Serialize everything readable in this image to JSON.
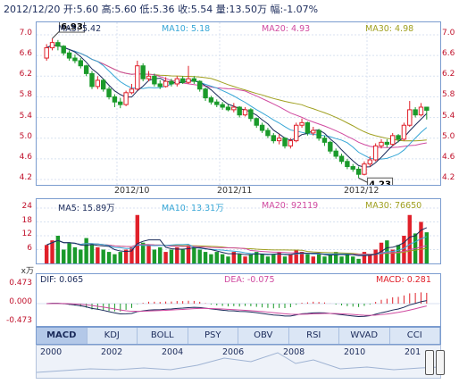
{
  "header": {
    "date": "2012/12/20",
    "open_label": "开:",
    "open": "5.60",
    "high_label": "高:",
    "high": "5.60",
    "low_label": "低:",
    "low": "5.36",
    "close_label": "收:",
    "close": "5.54",
    "volume_label": "量:",
    "volume": "13.50万",
    "change_label": "幅:",
    "change": "-1.07%"
  },
  "price_panel": {
    "ma5": "MA5: 5.42",
    "ma10": "MA10: 5.18",
    "ma20": "MA20: 4.93",
    "ma30": "MA30: 4.98",
    "y_ticks": [
      "7.0",
      "6.6",
      "6.2",
      "5.8",
      "5.4",
      "5.0",
      "4.6",
      "4.2"
    ],
    "x_ticks": [
      "2012/10",
      "2012/11",
      "2012/12"
    ],
    "high_marker": "6.93",
    "low_marker": "4.23"
  },
  "volume_panel": {
    "ma5": "MA5: 15.89万",
    "ma10": "MA10: 13.31万",
    "ma20": "MA20: 92119",
    "ma30": "MA30: 76650",
    "y_ticks": [
      "24",
      "18",
      "12",
      "6"
    ],
    "unit": "x万"
  },
  "macd_panel": {
    "dif": "DIF: 0.065",
    "dea": "DEA: -0.075",
    "macd": "MACD: 0.281",
    "y_ticks": [
      "0.473",
      "0.000",
      "-0.473"
    ]
  },
  "tabs": [
    "MACD",
    "KDJ",
    "BOLL",
    "PSY",
    "OBV",
    "RSI",
    "WVAD",
    "CCI"
  ],
  "active_tab": "MACD",
  "timeline": {
    "years": [
      "2000",
      "2002",
      "2004",
      "2006",
      "2008",
      "2010",
      "201"
    ]
  },
  "colors": {
    "up": "#e0202a",
    "down": "#1a9a2a",
    "ma5": "#1a2a5a",
    "ma10": "#36a6d6",
    "ma20": "#d04aa0",
    "ma30": "#a0a020",
    "border": "#7b9ccf"
  },
  "chart_data": {
    "type": "candlestick",
    "y_range": [
      4.2,
      7.0
    ],
    "candles": [
      {
        "o": 6.55,
        "c": 6.75,
        "h": 6.82,
        "l": 6.5
      },
      {
        "o": 6.75,
        "c": 6.85,
        "h": 6.93,
        "l": 6.7
      },
      {
        "o": 6.85,
        "c": 6.78,
        "h": 6.9,
        "l": 6.7
      },
      {
        "o": 6.78,
        "c": 6.65,
        "h": 6.8,
        "l": 6.6
      },
      {
        "o": 6.65,
        "c": 6.55,
        "h": 6.7,
        "l": 6.5
      },
      {
        "o": 6.55,
        "c": 6.5,
        "h": 6.62,
        "l": 6.45
      },
      {
        "o": 6.5,
        "c": 6.4,
        "h": 6.55,
        "l": 6.35
      },
      {
        "o": 6.4,
        "c": 6.25,
        "h": 6.42,
        "l": 6.2
      },
      {
        "o": 6.25,
        "c": 6.0,
        "h": 6.3,
        "l": 5.95
      },
      {
        "o": 6.0,
        "c": 6.12,
        "h": 6.2,
        "l": 5.95
      },
      {
        "o": 6.12,
        "c": 5.95,
        "h": 6.15,
        "l": 5.9
      },
      {
        "o": 5.95,
        "c": 5.8,
        "h": 6.0,
        "l": 5.75
      },
      {
        "o": 5.8,
        "c": 5.7,
        "h": 5.85,
        "l": 5.6
      },
      {
        "o": 5.7,
        "c": 5.65,
        "h": 5.78,
        "l": 5.58
      },
      {
        "o": 5.65,
        "c": 5.88,
        "h": 5.92,
        "l": 5.62
      },
      {
        "o": 5.88,
        "c": 5.95,
        "h": 6.05,
        "l": 5.85
      },
      {
        "o": 5.95,
        "c": 6.4,
        "h": 6.5,
        "l": 5.92
      },
      {
        "o": 6.4,
        "c": 6.15,
        "h": 6.45,
        "l": 6.1
      },
      {
        "o": 6.15,
        "c": 6.2,
        "h": 6.3,
        "l": 6.1
      },
      {
        "o": 6.2,
        "c": 6.05,
        "h": 6.25,
        "l": 6.0
      },
      {
        "o": 6.05,
        "c": 6.0,
        "h": 6.12,
        "l": 5.95
      },
      {
        "o": 6.0,
        "c": 6.1,
        "h": 6.18,
        "l": 5.98
      },
      {
        "o": 6.1,
        "c": 6.05,
        "h": 6.15,
        "l": 6.0
      },
      {
        "o": 6.05,
        "c": 6.15,
        "h": 6.2,
        "l": 6.0
      },
      {
        "o": 6.15,
        "c": 6.08,
        "h": 6.2,
        "l": 6.05
      },
      {
        "o": 6.08,
        "c": 6.15,
        "h": 6.4,
        "l": 6.05
      },
      {
        "o": 6.15,
        "c": 6.1,
        "h": 6.2,
        "l": 6.05
      },
      {
        "o": 6.1,
        "c": 5.95,
        "h": 6.12,
        "l": 5.9
      },
      {
        "o": 5.95,
        "c": 5.78,
        "h": 5.98,
        "l": 5.72
      },
      {
        "o": 5.78,
        "c": 5.7,
        "h": 5.82,
        "l": 5.65
      },
      {
        "o": 5.7,
        "c": 5.65,
        "h": 5.75,
        "l": 5.6
      },
      {
        "o": 5.65,
        "c": 5.6,
        "h": 5.7,
        "l": 5.55
      },
      {
        "o": 5.6,
        "c": 5.55,
        "h": 5.65,
        "l": 5.52
      },
      {
        "o": 5.55,
        "c": 5.6,
        "h": 5.68,
        "l": 5.5
      },
      {
        "o": 5.6,
        "c": 5.45,
        "h": 5.62,
        "l": 5.4
      },
      {
        "o": 5.45,
        "c": 5.55,
        "h": 5.6,
        "l": 5.42
      },
      {
        "o": 5.55,
        "c": 5.38,
        "h": 5.58,
        "l": 5.32
      },
      {
        "o": 5.38,
        "c": 5.25,
        "h": 5.4,
        "l": 5.2
      },
      {
        "o": 5.25,
        "c": 5.15,
        "h": 5.3,
        "l": 5.1
      },
      {
        "o": 5.15,
        "c": 5.05,
        "h": 5.2,
        "l": 5.0
      },
      {
        "o": 5.05,
        "c": 4.95,
        "h": 5.1,
        "l": 4.9
      },
      {
        "o": 4.95,
        "c": 5.0,
        "h": 5.08,
        "l": 4.88
      },
      {
        "o": 5.0,
        "c": 4.85,
        "h": 5.02,
        "l": 4.8
      },
      {
        "o": 4.85,
        "c": 4.95,
        "h": 5.0,
        "l": 4.8
      },
      {
        "o": 4.95,
        "c": 5.25,
        "h": 5.3,
        "l": 4.92
      },
      {
        "o": 5.25,
        "c": 5.3,
        "h": 5.38,
        "l": 5.2
      },
      {
        "o": 5.3,
        "c": 5.1,
        "h": 5.32,
        "l": 5.05
      },
      {
        "o": 5.1,
        "c": 5.15,
        "h": 5.22,
        "l": 5.05
      },
      {
        "o": 5.15,
        "c": 5.0,
        "h": 5.18,
        "l": 4.95
      },
      {
        "o": 5.0,
        "c": 4.92,
        "h": 5.05,
        "l": 4.85
      },
      {
        "o": 4.92,
        "c": 4.75,
        "h": 4.95,
        "l": 4.7
      },
      {
        "o": 4.75,
        "c": 4.65,
        "h": 4.8,
        "l": 4.6
      },
      {
        "o": 4.65,
        "c": 4.55,
        "h": 4.7,
        "l": 4.5
      },
      {
        "o": 4.55,
        "c": 4.45,
        "h": 4.6,
        "l": 4.4
      },
      {
        "o": 4.45,
        "c": 4.4,
        "h": 4.5,
        "l": 4.35
      },
      {
        "o": 4.4,
        "c": 4.3,
        "h": 4.45,
        "l": 4.23
      },
      {
        "o": 4.3,
        "c": 4.5,
        "h": 4.55,
        "l": 4.28
      },
      {
        "o": 4.5,
        "c": 4.58,
        "h": 4.65,
        "l": 4.45
      },
      {
        "o": 4.58,
        "c": 4.85,
        "h": 4.9,
        "l": 4.55
      },
      {
        "o": 4.85,
        "c": 4.92,
        "h": 4.98,
        "l": 4.8
      },
      {
        "o": 4.92,
        "c": 4.88,
        "h": 4.98,
        "l": 4.82
      },
      {
        "o": 4.88,
        "c": 5.05,
        "h": 5.1,
        "l": 4.85
      },
      {
        "o": 5.05,
        "c": 4.98,
        "h": 5.08,
        "l": 4.92
      },
      {
        "o": 4.98,
        "c": 5.25,
        "h": 5.3,
        "l": 4.95
      },
      {
        "o": 5.25,
        "c": 5.55,
        "h": 5.72,
        "l": 5.22
      },
      {
        "o": 5.55,
        "c": 5.45,
        "h": 5.6,
        "l": 5.4
      },
      {
        "o": 5.45,
        "c": 5.6,
        "h": 5.68,
        "l": 5.42
      },
      {
        "o": 5.6,
        "c": 5.54,
        "h": 5.6,
        "l": 5.36
      }
    ],
    "volume": [
      8,
      10,
      12,
      6,
      9,
      7,
      6,
      11,
      8,
      7,
      6,
      5,
      4,
      5,
      6,
      7,
      21,
      9,
      8,
      6,
      7,
      5,
      6,
      7,
      6,
      8,
      7,
      6,
      5,
      4,
      5,
      4,
      3,
      5,
      4,
      3,
      4,
      5,
      4,
      3,
      4,
      5,
      3,
      4,
      6,
      5,
      4,
      3,
      4,
      3,
      4,
      5,
      3,
      4,
      3,
      2,
      5,
      4,
      6,
      9,
      10,
      6,
      8,
      12,
      21,
      13,
      18,
      13.5
    ],
    "volume_y_range": [
      0,
      24
    ],
    "macd_y_range": [
      -0.473,
      0.473
    ]
  }
}
